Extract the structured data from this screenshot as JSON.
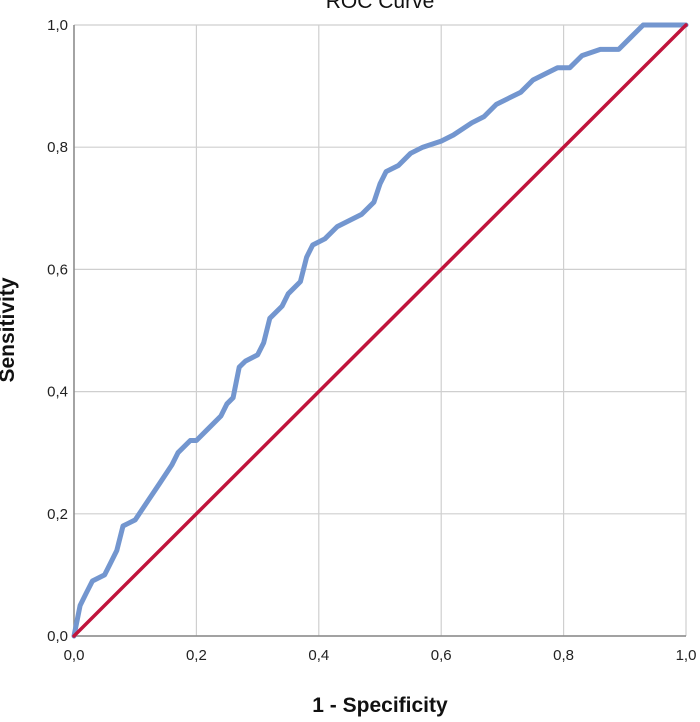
{
  "chart_data": {
    "type": "line",
    "title": "ROC Curve",
    "xlabel": "1 - Specificity",
    "ylabel": "Sensitivity",
    "xlim": [
      0,
      1
    ],
    "ylim": [
      0,
      1
    ],
    "xticks": [
      "0,0",
      "0,2",
      "0,4",
      "0,6",
      "0,8",
      "1,0"
    ],
    "yticks": [
      "0,0",
      "0,2",
      "0,4",
      "0,6",
      "0,8",
      "1,0"
    ],
    "grid": true,
    "legend": "none",
    "series": [
      {
        "color": "#7396cf",
        "x": [
          0,
          0.01,
          0.02,
          0.03,
          0.05,
          0.06,
          0.07,
          0.08,
          0.1,
          0.12,
          0.14,
          0.16,
          0.17,
          0.19,
          0.2,
          0.22,
          0.24,
          0.25,
          0.26,
          0.27,
          0.28,
          0.3,
          0.31,
          0.32,
          0.34,
          0.35,
          0.37,
          0.38,
          0.39,
          0.41,
          0.43,
          0.45,
          0.47,
          0.49,
          0.5,
          0.51,
          0.53,
          0.55,
          0.57,
          0.6,
          0.62,
          0.65,
          0.67,
          0.69,
          0.71,
          0.73,
          0.75,
          0.77,
          0.79,
          0.81,
          0.83,
          0.86,
          0.89,
          0.91,
          0.93,
          1.0
        ],
        "y": [
          0,
          0.05,
          0.07,
          0.09,
          0.1,
          0.12,
          0.14,
          0.18,
          0.19,
          0.22,
          0.25,
          0.28,
          0.3,
          0.32,
          0.32,
          0.34,
          0.36,
          0.38,
          0.39,
          0.44,
          0.45,
          0.46,
          0.48,
          0.52,
          0.54,
          0.56,
          0.58,
          0.62,
          0.64,
          0.65,
          0.67,
          0.68,
          0.69,
          0.71,
          0.74,
          0.76,
          0.77,
          0.79,
          0.8,
          0.81,
          0.82,
          0.84,
          0.85,
          0.87,
          0.88,
          0.89,
          0.91,
          0.92,
          0.93,
          0.93,
          0.95,
          0.96,
          0.96,
          0.98,
          1.0,
          1.0
        ]
      },
      {
        "color": "#c0143c",
        "x": [
          0,
          1
        ],
        "y": [
          0,
          1
        ]
      }
    ]
  }
}
